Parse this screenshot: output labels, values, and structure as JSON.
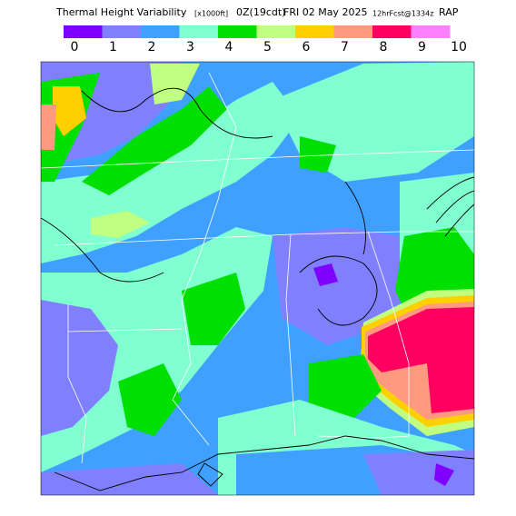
{
  "header": {
    "title": "Thermal Height Variability",
    "units": "[x1000ft]",
    "run": "0Z(19cdt)",
    "date": "FRI 02 May 2025",
    "forecast": "12hrFcst@1334z",
    "model": "RAP"
  },
  "scale": {
    "labels": [
      "0",
      "1",
      "2",
      "3",
      "4",
      "5",
      "6",
      "7",
      "8",
      "9",
      "10"
    ],
    "colors": [
      "#8000ff",
      "#8080ff",
      "#40a0ff",
      "#80ffd0",
      "#00e000",
      "#c0ff80",
      "#ffd000",
      "#ff9a80",
      "#ff0060",
      "#ff80ff"
    ]
  }
}
